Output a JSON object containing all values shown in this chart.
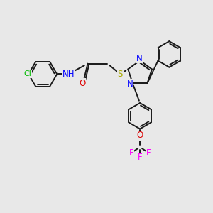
{
  "background_color": "#e8e8e8",
  "bond_color": "#1a1a1a",
  "bond_width": 1.4,
  "atoms": {
    "Cl": {
      "color": "#00bb00"
    },
    "N": {
      "color": "#0000ff"
    },
    "O": {
      "color": "#dd0000"
    },
    "S": {
      "color": "#aaaa00"
    },
    "F": {
      "color": "#ff00ff"
    }
  },
  "fig_width": 3.0,
  "fig_height": 3.0,
  "dpi": 100,
  "xlim": [
    0,
    10
  ],
  "ylim": [
    0,
    10
  ]
}
